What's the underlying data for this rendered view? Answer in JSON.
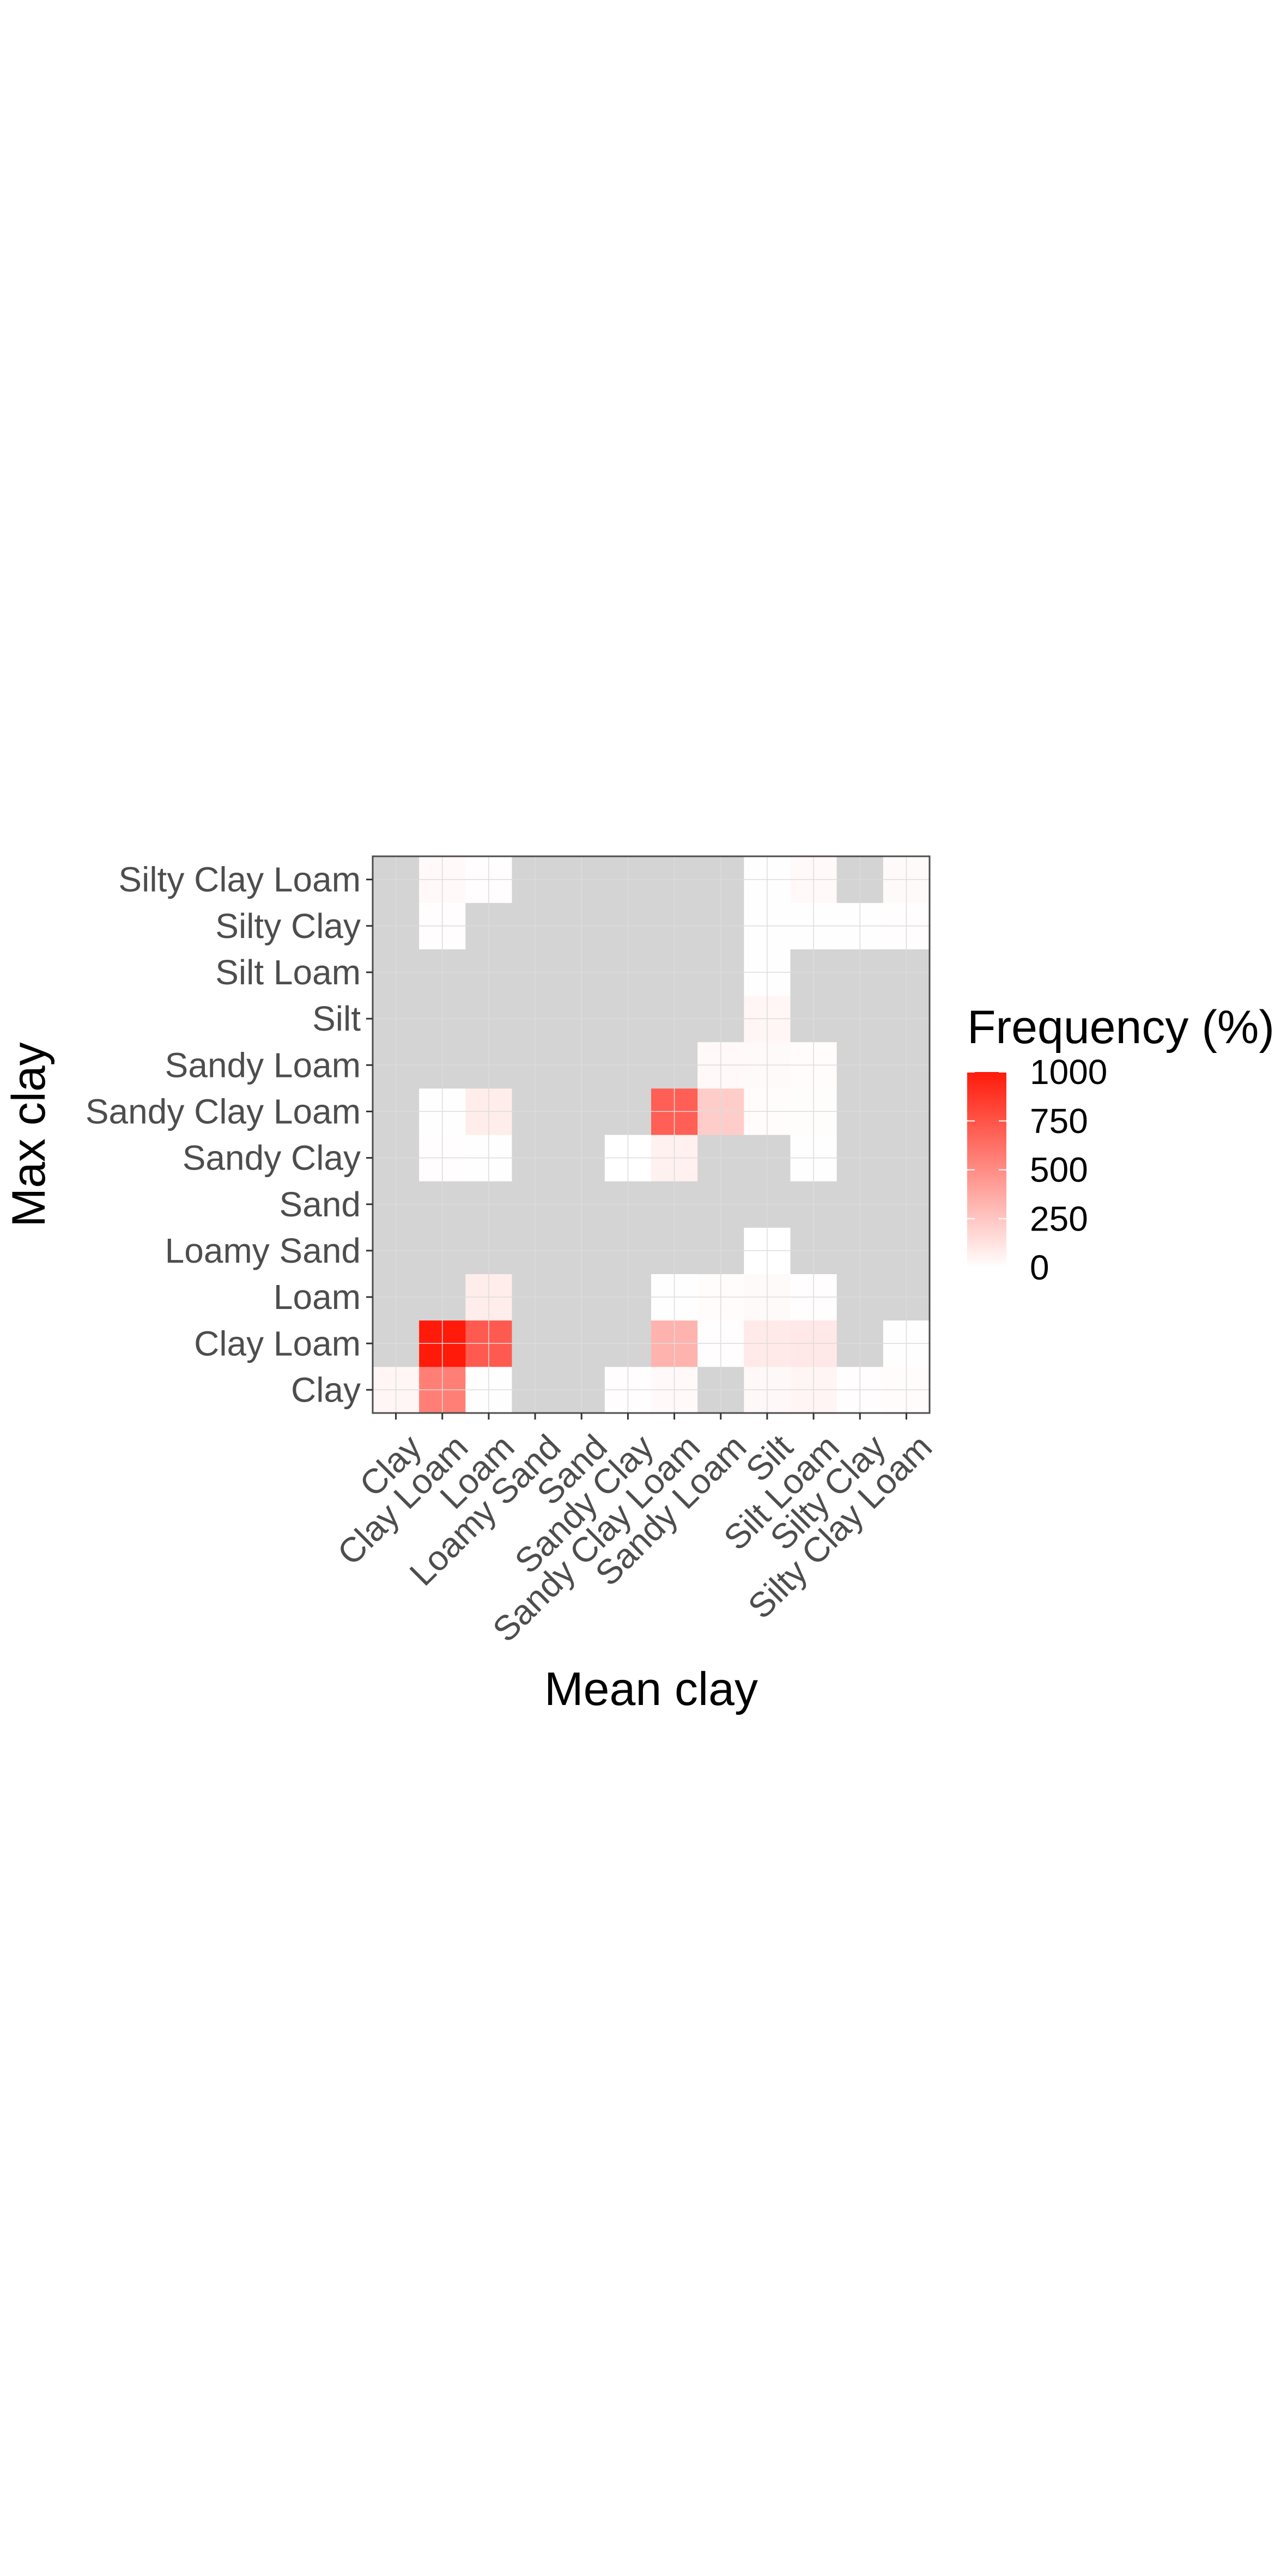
{
  "chart_data": {
    "type": "heatmap",
    "xlabel": "Mean clay",
    "ylabel": "Max clay",
    "x_categories": [
      "Clay",
      "Clay Loam",
      "Loam",
      "Loamy Sand",
      "Sand",
      "Sandy Clay",
      "Sandy Clay Loam",
      "Sandy Loam",
      "Silt",
      "Silt Loam",
      "Silty Clay",
      "Silty Clay Loam"
    ],
    "y_categories": [
      "Clay",
      "Clay Loam",
      "Loam",
      "Loamy Sand",
      "Sand",
      "Sandy Clay",
      "Sandy Clay Loam",
      "Sandy Loam",
      "Silt",
      "Silt Loam",
      "Silty Clay",
      "Silty Clay Loam"
    ],
    "values": [
      [
        40,
        560,
        5,
        null,
        null,
        10,
        25,
        null,
        30,
        45,
        8,
        15
      ],
      [
        null,
        1000,
        720,
        null,
        null,
        null,
        330,
        10,
        90,
        100,
        null,
        3
      ],
      [
        null,
        null,
        80,
        null,
        null,
        null,
        5,
        15,
        20,
        8,
        null,
        null
      ],
      [
        null,
        null,
        null,
        null,
        null,
        null,
        null,
        null,
        2,
        null,
        null,
        null
      ],
      [
        null,
        null,
        null,
        null,
        null,
        null,
        null,
        null,
        null,
        null,
        null,
        null
      ],
      [
        null,
        8,
        5,
        null,
        null,
        2,
        60,
        null,
        null,
        5,
        null,
        null
      ],
      [
        null,
        5,
        80,
        null,
        null,
        null,
        700,
        220,
        15,
        12,
        null,
        null
      ],
      [
        null,
        null,
        null,
        null,
        null,
        null,
        null,
        25,
        20,
        15,
        null,
        null
      ],
      [
        null,
        null,
        null,
        null,
        null,
        null,
        null,
        null,
        40,
        null,
        null,
        null
      ],
      [
        null,
        null,
        null,
        null,
        null,
        null,
        null,
        null,
        5,
        null,
        null,
        null
      ],
      [
        null,
        8,
        null,
        null,
        null,
        null,
        null,
        null,
        5,
        5,
        3,
        8
      ],
      [
        null,
        25,
        8,
        null,
        null,
        null,
        null,
        null,
        5,
        25,
        null,
        20
      ]
    ],
    "legend": {
      "title": "Frequency (%)",
      "ticks": [
        0,
        250,
        500,
        750,
        1000
      ],
      "limits": [
        0,
        1000
      ],
      "low_color": "#ffffff",
      "high_color": "#ff1a0a",
      "na_color": "#d4d4d4",
      "position": "right"
    },
    "grid": true,
    "panel_border_color": "#4d4d4d"
  }
}
